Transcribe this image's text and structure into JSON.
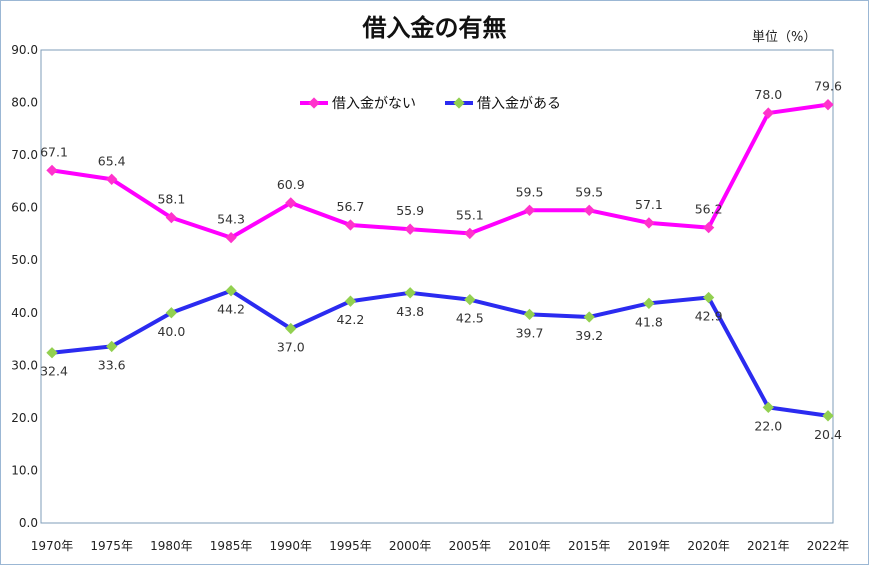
{
  "chart_data": {
    "type": "line",
    "title": "借入金の有無",
    "unit_label": "単位（%）",
    "categories": [
      "1970年",
      "1975年",
      "1980年",
      "1985年",
      "1990年",
      "1995年",
      "2000年",
      "2005年",
      "2010年",
      "2015年",
      "2019年",
      "2020年",
      "2021年",
      "2022年"
    ],
    "y_ticks": [
      "0.0",
      "10.0",
      "20.0",
      "30.0",
      "40.0",
      "50.0",
      "60.0",
      "70.0",
      "80.0",
      "90.0"
    ],
    "ylim": [
      0,
      90
    ],
    "legend_position": "top-center",
    "series": [
      {
        "name": "借入金がない",
        "color": "#ff00ff",
        "marker_color": "#ff33cc",
        "values": [
          67.1,
          65.4,
          58.1,
          54.3,
          60.9,
          56.7,
          55.9,
          55.1,
          59.5,
          59.5,
          57.1,
          56.2,
          78.0,
          79.6
        ],
        "labels": [
          "67.1",
          "65.4",
          "58.1",
          "54.3",
          "60.9",
          "56.7",
          "55.9",
          "55.1",
          "59.5",
          "59.5",
          "57.1",
          "56.2",
          "78.0",
          "79.6"
        ]
      },
      {
        "name": "借入金がある",
        "color": "#2b2bf0",
        "marker_color": "#92d050",
        "values": [
          32.4,
          33.6,
          40.0,
          44.2,
          37.0,
          42.2,
          43.8,
          42.5,
          39.7,
          39.2,
          41.8,
          42.9,
          22.0,
          20.4
        ],
        "labels": [
          "32.4",
          "33.6",
          "40.0",
          "44.2",
          "37.0",
          "42.2",
          "43.8",
          "42.5",
          "39.7",
          "39.2",
          "41.8",
          "42.9",
          "22.0",
          "20.4"
        ]
      }
    ]
  }
}
